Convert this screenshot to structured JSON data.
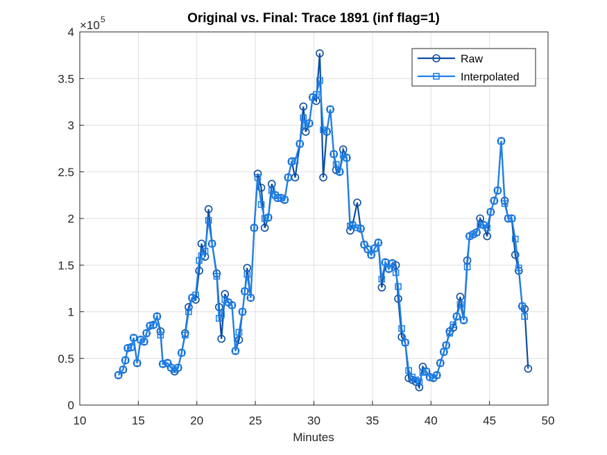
{
  "chart_data": {
    "type": "line",
    "title": "Original vs. Final: Trace 1891 (inf flag=1)",
    "xlabel": "Minutes",
    "y_exponent": {
      "base": "×10",
      "power": "5"
    },
    "x": [
      13.3,
      13.7,
      13.9,
      14.1,
      14.4,
      14.6,
      14.9,
      15.2,
      15.5,
      15.7,
      16.0,
      16.3,
      16.6,
      16.9,
      17.1,
      17.5,
      17.8,
      18.1,
      18.4,
      18.7,
      19.0,
      19.3,
      19.6,
      19.9,
      20.2,
      20.4,
      20.7,
      21.0,
      21.3,
      21.7,
      21.9,
      22.1,
      22.4,
      22.7,
      23.0,
      23.3,
      23.6,
      23.9,
      24.1,
      24.3,
      24.6,
      24.9,
      25.2,
      25.5,
      25.8,
      26.1,
      26.4,
      26.7,
      26.9,
      27.2,
      27.5,
      27.8,
      28.1,
      28.4,
      28.8,
      29.1,
      29.3,
      29.6,
      29.9,
      30.2,
      30.5,
      30.8,
      31.1,
      31.4,
      31.7,
      31.9,
      32.2,
      32.5,
      32.8,
      33.1,
      33.3,
      33.7,
      34.0,
      34.3,
      34.6,
      34.9,
      35.2,
      35.5,
      35.8,
      36.1,
      36.4,
      36.7,
      37.0,
      37.2,
      37.5,
      37.8,
      38.1,
      38.4,
      38.7,
      39.0,
      39.3,
      39.6,
      39.9,
      40.2,
      40.5,
      40.8,
      41.1,
      41.3,
      41.6,
      41.9,
      42.2,
      42.5,
      42.8,
      43.1,
      43.3,
      43.6,
      43.9,
      44.2,
      44.5,
      44.8,
      45.1,
      45.4,
      45.7,
      46.0,
      46.3,
      46.6,
      46.9,
      47.2,
      47.5,
      47.8,
      48.0,
      48.3
    ],
    "series": [
      {
        "name": "Raw",
        "color": "#0b4ea2",
        "marker": "circle",
        "values": [
          32000,
          38000,
          48000,
          61000,
          62000,
          72000,
          45000,
          70000,
          68000,
          77000,
          85000,
          86000,
          95000,
          79000,
          44000,
          45000,
          40000,
          36000,
          40000,
          56000,
          77000,
          105000,
          115000,
          113000,
          144000,
          173000,
          159000,
          210000,
          173000,
          141000,
          105000,
          71000,
          119000,
          110000,
          107000,
          58000,
          70000,
          100000,
          122000,
          147000,
          115000,
          190000,
          248000,
          233000,
          190000,
          201000,
          237000,
          225000,
          222000,
          222000,
          220000,
          244000,
          261000,
          244000,
          280000,
          320000,
          293000,
          302000,
          330000,
          326000,
          377000,
          244000,
          293000,
          317000,
          269000,
          252000,
          250000,
          274000,
          265000,
          187000,
          193000,
          217000,
          189000,
          172000,
          167000,
          161000,
          168000,
          174000,
          126000,
          153000,
          146000,
          152000,
          150000,
          114000,
          73000,
          67000,
          29000,
          27000,
          25000,
          19000,
          41000,
          36000,
          30000,
          29000,
          32000,
          45000,
          57000,
          64000,
          79000,
          83000,
          95000,
          116000,
          91000,
          155000,
          181000,
          183000,
          185000,
          200000,
          193000,
          181000,
          207000,
          219000,
          230000,
          283000,
          219000,
          200000,
          200000,
          161000,
          144000,
          106000,
          103000,
          39000
        ]
      },
      {
        "name": "Interpolated",
        "color": "#1f80e8",
        "marker": "square",
        "values": [
          32000,
          38000,
          48000,
          61000,
          62000,
          72000,
          45000,
          70000,
          68000,
          77000,
          85000,
          86000,
          95000,
          75000,
          44000,
          45000,
          40000,
          38000,
          40000,
          56000,
          75000,
          100000,
          115000,
          118000,
          155000,
          160000,
          165000,
          198000,
          173000,
          138000,
          93000,
          97000,
          113000,
          110000,
          107000,
          58000,
          78000,
          100000,
          122000,
          140000,
          115000,
          190000,
          244000,
          215000,
          200000,
          201000,
          230000,
          225000,
          222000,
          222000,
          220000,
          244000,
          261000,
          262000,
          280000,
          308000,
          300000,
          302000,
          330000,
          333000,
          348000,
          295000,
          293000,
          317000,
          269000,
          258000,
          250000,
          268000,
          265000,
          192000,
          193000,
          190000,
          189000,
          172000,
          167000,
          161000,
          168000,
          174000,
          135000,
          153000,
          146000,
          152000,
          142000,
          127000,
          82000,
          67000,
          37000,
          30000,
          27000,
          25000,
          35000,
          36000,
          30000,
          29000,
          32000,
          45000,
          57000,
          64000,
          77000,
          86000,
          95000,
          108000,
          91000,
          148000,
          181000,
          183000,
          185000,
          193000,
          193000,
          190000,
          207000,
          219000,
          230000,
          283000,
          216000,
          200000,
          200000,
          178000,
          147000,
          106000,
          95000,
          null
        ]
      }
    ],
    "xlim": [
      10,
      50
    ],
    "xticks": [
      10,
      15,
      20,
      25,
      30,
      35,
      40,
      45,
      50
    ],
    "ylim": [
      0,
      400000
    ],
    "yticks": [
      {
        "value": 0,
        "label": "0"
      },
      {
        "value": 50000,
        "label": "0.5"
      },
      {
        "value": 100000,
        "label": "1"
      },
      {
        "value": 150000,
        "label": "1.5"
      },
      {
        "value": 200000,
        "label": "2"
      },
      {
        "value": 250000,
        "label": "2.5"
      },
      {
        "value": 300000,
        "label": "3"
      },
      {
        "value": 350000,
        "label": "3.5"
      },
      {
        "value": 400000,
        "label": "4"
      }
    ],
    "grid": true,
    "legend_position": "northeast"
  }
}
